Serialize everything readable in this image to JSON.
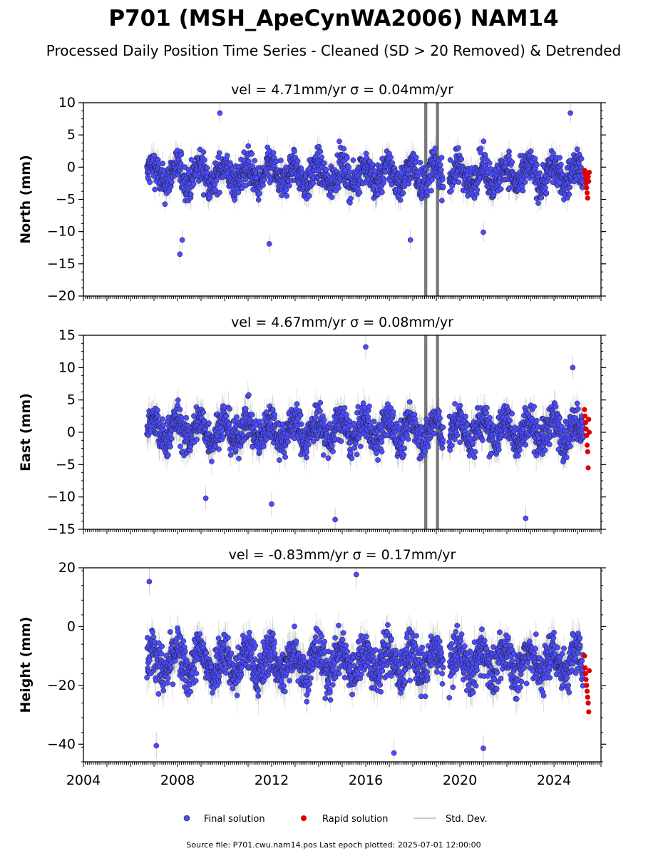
{
  "title": "P701 (MSH_ApeCynWA2006) NAM14",
  "subtitle": "Processed Daily Position Time Series - Cleaned (SD > 20 Removed) & Detrended",
  "legend": {
    "final": "Final solution",
    "rapid": "Rapid solution",
    "std": "Std. Dev."
  },
  "footer": "Source file: P701.cwu.nam14.pos  Last epoch plotted: 2025-07-01 12:00:00",
  "colors": {
    "final": "#4c4cff",
    "rapid": "#e00000",
    "std": "#9a9a9a",
    "edge": "#1a1a1a"
  },
  "chart_data": [
    {
      "type": "scatter",
      "title": "vel = 4.71mm/yr   σ = 0.04mm/yr",
      "ylabel": "North (mm)",
      "xlim": [
        2004.0,
        2026.0
      ],
      "ylim": [
        -20,
        10
      ],
      "yticks": [
        10,
        5,
        0,
        -5,
        -10,
        -15,
        -20
      ],
      "xticks": [
        2004,
        2008,
        2012,
        2016,
        2020,
        2024
      ],
      "data_start": 2006.7,
      "data_end": 2025.25,
      "gap": [
        2019.3,
        2019.55
      ],
      "final_band": {
        "center": -1.2,
        "spread": 2.4,
        "std": 1.5
      },
      "rapid_range": [
        2025.3,
        2025.5
      ],
      "rapid_values": [
        -0.5,
        -1.0,
        -1.8,
        -2.5,
        -3.2,
        -4.0,
        -4.8,
        -1.5,
        -2.2,
        -0.8
      ],
      "outliers": [
        {
          "x": 2008.1,
          "y": -13.5
        },
        {
          "x": 2008.2,
          "y": -11.3
        },
        {
          "x": 2011.9,
          "y": -11.9
        },
        {
          "x": 2009.8,
          "y": 8.4
        },
        {
          "x": 2024.7,
          "y": 8.4
        },
        {
          "x": 2017.9,
          "y": -11.3
        },
        {
          "x": 2021.0,
          "y": -10.1
        }
      ],
      "spikes": [
        2018.5,
        2019.0
      ]
    },
    {
      "type": "scatter",
      "title": "vel = 4.67mm/yr   σ = 0.08mm/yr",
      "ylabel": "East (mm)",
      "xlim": [
        2004.0,
        2026.0
      ],
      "ylim": [
        -15,
        15
      ],
      "yticks": [
        15,
        10,
        5,
        0,
        -5,
        -10,
        -15
      ],
      "xticks": [
        2004,
        2008,
        2012,
        2016,
        2020,
        2024
      ],
      "data_start": 2006.7,
      "data_end": 2025.25,
      "gap": [
        2019.3,
        2019.55
      ],
      "final_band": {
        "center": 0.3,
        "spread": 2.6,
        "std": 1.8
      },
      "rapid_range": [
        2025.3,
        2025.5
      ],
      "rapid_values": [
        3.5,
        2.5,
        1.5,
        0.5,
        -0.5,
        -2.0,
        -3.0,
        -5.5,
        2.0,
        0.0
      ],
      "outliers": [
        {
          "x": 2016.0,
          "y": 13.2
        },
        {
          "x": 2014.7,
          "y": -13.5
        },
        {
          "x": 2022.8,
          "y": -13.3
        },
        {
          "x": 2024.8,
          "y": 10.0
        },
        {
          "x": 2012.0,
          "y": -11.1
        },
        {
          "x": 2009.2,
          "y": -10.2
        }
      ],
      "spikes": [
        2018.5,
        2019.0
      ]
    },
    {
      "type": "scatter",
      "title": "vel = -0.83mm/yr   σ = 0.17mm/yr",
      "ylabel": "Height (mm)",
      "xlim": [
        2004.0,
        2026.0
      ],
      "ylim": [
        -46,
        20
      ],
      "yticks": [
        20,
        0,
        -20,
        -40
      ],
      "xticks": [
        2004,
        2008,
        2012,
        2016,
        2020,
        2024
      ],
      "data_start": 2006.7,
      "data_end": 2025.25,
      "gap": [
        2019.3,
        2019.55
      ],
      "final_band": {
        "center": -12,
        "spread": 7,
        "std": 4.5
      },
      "rapid_range": [
        2025.3,
        2025.5
      ],
      "rapid_values": [
        -10,
        -14,
        -16,
        -18,
        -20,
        -22,
        -24,
        -26,
        -29,
        -15
      ],
      "outliers": [
        {
          "x": 2006.8,
          "y": 15.3
        },
        {
          "x": 2015.6,
          "y": 17.7
        },
        {
          "x": 2017.2,
          "y": -43.0
        },
        {
          "x": 2021.0,
          "y": -41.4
        },
        {
          "x": 2007.1,
          "y": -40.5
        }
      ],
      "spikes": []
    }
  ]
}
